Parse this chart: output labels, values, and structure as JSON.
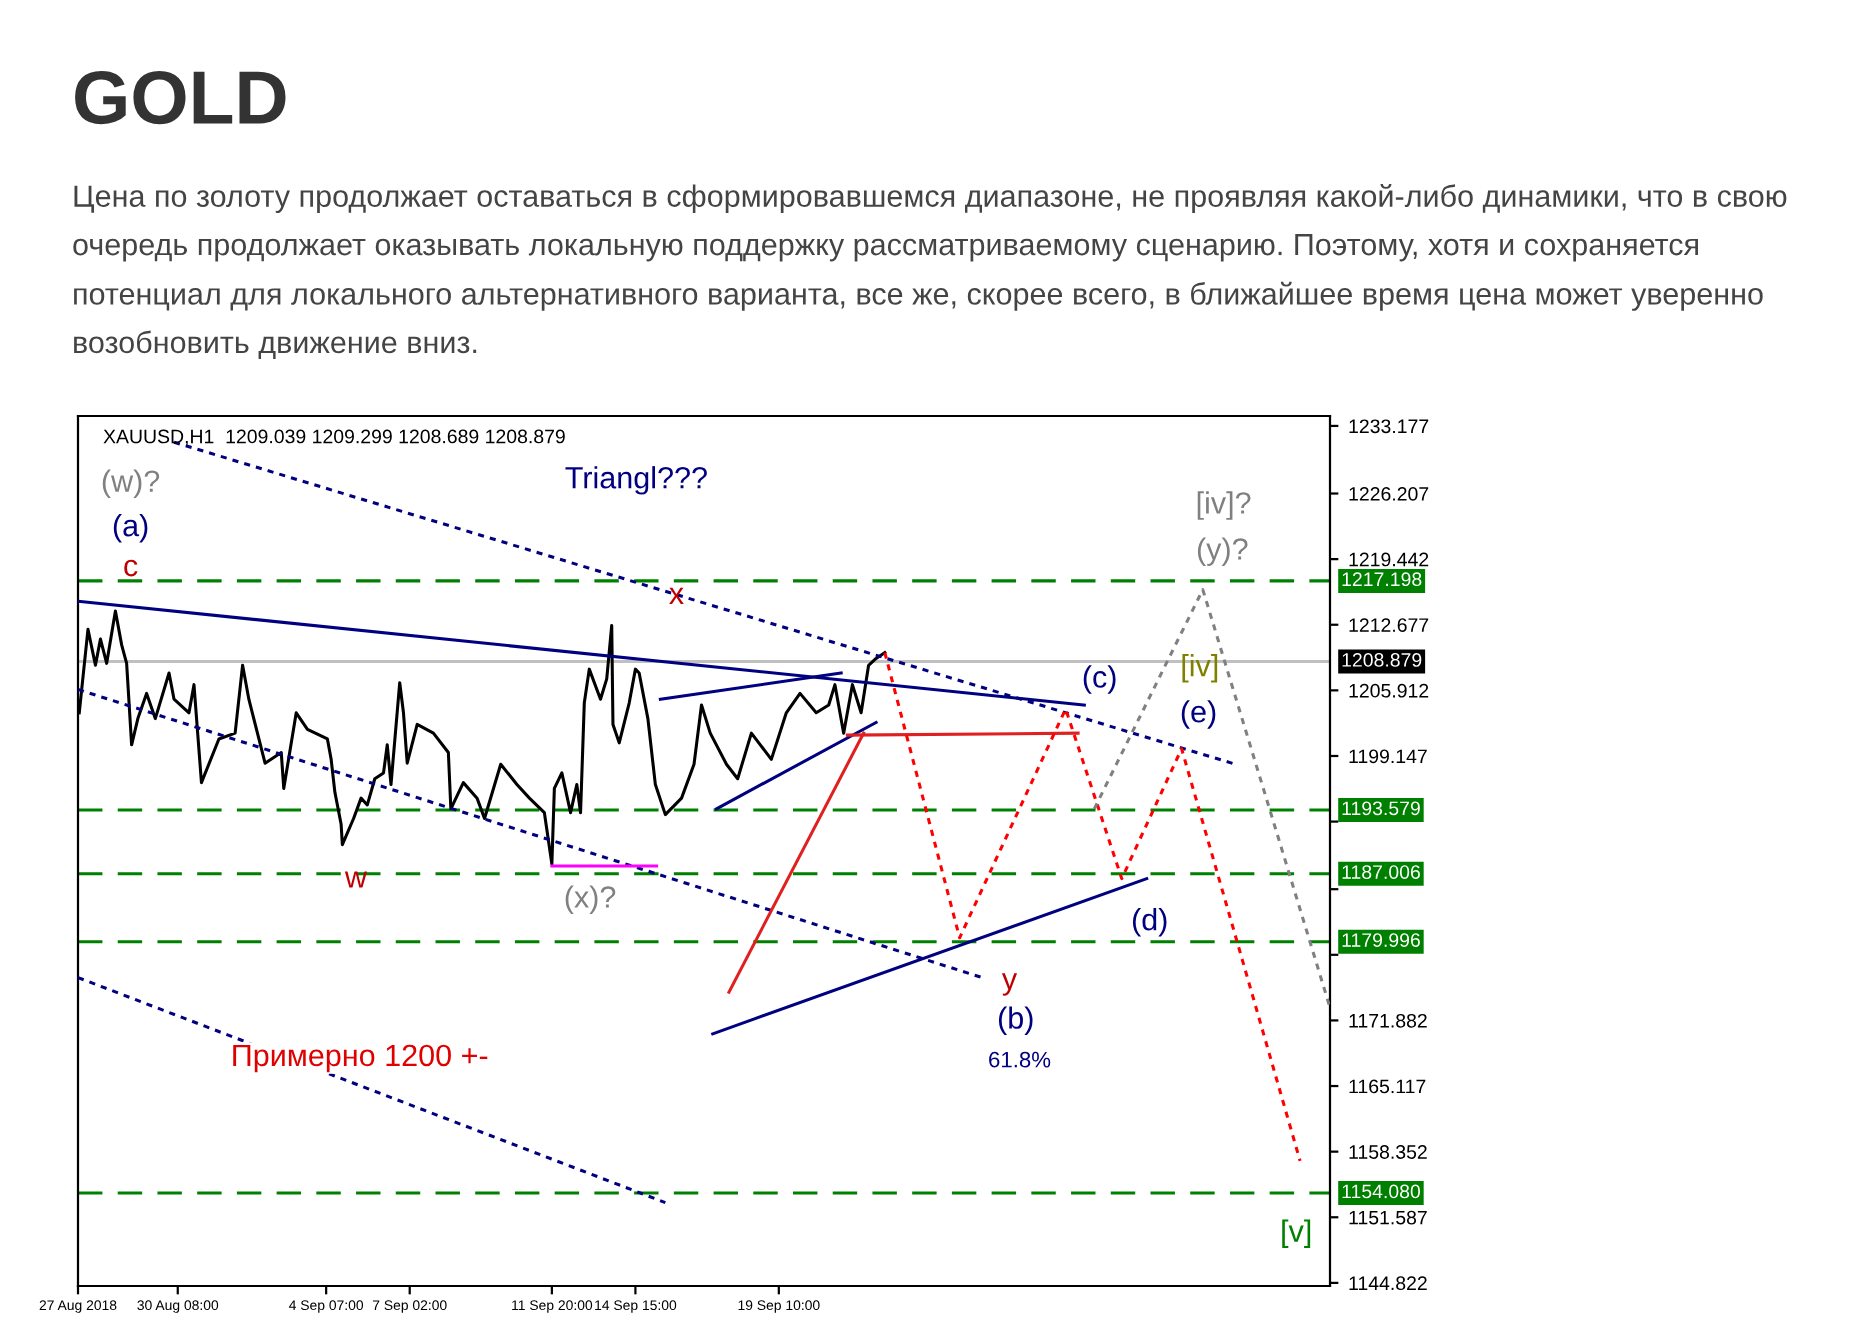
{
  "chart_data": {
    "type": "line",
    "title": "GOLD",
    "subtitle": "Цена по золоту продолжает оставаться в сформировавшемся диапазоне, не проявляя какой-либо динамики, что в свою очередь продолжает оказывать локальную поддержку рассматриваемому сценарию. Поэтому, хотя и сохраняется потенциал для локального альтернативного варианта, все же, скорее всего, в ближайшее время цена может уверенно возобновить движение вниз.",
    "series": [
      {
        "color": "#000000",
        "line_style": "solid",
        "x": [
          "2018-08-27T01:00",
          "2018-08-27T08:00",
          "2018-08-27T14:00",
          "2018-08-27T18:00",
          "2018-08-27T23:00",
          "2018-08-28T06:00",
          "2018-08-28T11:00",
          "2018-08-28T15:00",
          "2018-08-28T19:00",
          "2018-08-29T00:00",
          "2018-08-29T07:00",
          "2018-08-29T14:00",
          "2018-08-30T01:00",
          "2018-08-30T05:00",
          "2018-08-30T17:00",
          "2018-08-30T21:00",
          "2018-08-31T03:00",
          "2018-08-31T17:00",
          "2018-09-01T06:00",
          "2018-09-01T12:00",
          "2018-09-01T17:00",
          "2018-09-02T06:00",
          "2018-09-02T19:00",
          "2018-09-02T21:00",
          "2018-09-03T07:00",
          "2018-09-03T16:00",
          "2018-09-04T08:00",
          "2018-09-04T11:00",
          "2018-09-04T14:00",
          "2018-09-04T19:00",
          "2018-09-04T20:00",
          "2018-09-05T05:00",
          "2018-09-05T11:00",
          "2018-09-05T16:00",
          "2018-09-05T22:00",
          "2018-09-06T05:00",
          "2018-09-06T08:00",
          "2018-09-06T11:00",
          "2018-09-06T18:00",
          "2018-09-06T21:00",
          "2018-09-07T00:00",
          "2018-09-07T08:00",
          "2018-09-07T21:00",
          "2018-09-08T09:00",
          "2018-09-08T11:00",
          "2018-09-08T21:00",
          "2018-09-09T08:00",
          "2018-09-09T14:00",
          "2018-09-10T03:00",
          "2018-09-10T16:00",
          "2018-09-11T02:00",
          "2018-09-11T14:00",
          "2018-09-11T20:00",
          "2018-09-11T22:00",
          "2018-09-12T04:00",
          "2018-09-12T11:00",
          "2018-09-12T16:00",
          "2018-09-12T19:00",
          "2018-09-12T22:00",
          "2018-09-13T02:00",
          "2018-09-13T11:00",
          "2018-09-13T16:00",
          "2018-09-13T20:00",
          "2018-09-13T21:00",
          "2018-09-14T02:00",
          "2018-09-14T10:00",
          "2018-09-14T15:00",
          "2018-09-14T18:00",
          "2018-09-15T01:00",
          "2018-09-15T07:00",
          "2018-09-15T15:00",
          "2018-09-16T04:00",
          "2018-09-16T14:00",
          "2018-09-16T20:00",
          "2018-09-17T03:00",
          "2018-09-17T16:00",
          "2018-09-18T01:00",
          "2018-09-18T12:00",
          "2018-09-19T04:00",
          "2018-09-19T16:00",
          "2018-09-20T03:00",
          "2018-09-20T16:00",
          "2018-09-21T02:00",
          "2018-09-21T07:00",
          "2018-09-21T14:00",
          "2018-09-21T21:00",
          "2018-09-22T04:00",
          "2018-09-22T10:00",
          "2018-09-22T16:00",
          "2018-09-22T23:00"
        ],
        "values": [
          1203.6,
          1212.2,
          1208.5,
          1211.2,
          1208.7,
          1214.1,
          1210.6,
          1208.7,
          1200.3,
          1203.0,
          1205.6,
          1203.0,
          1207.7,
          1205.0,
          1203.6,
          1206.5,
          1196.4,
          1200.9,
          1201.5,
          1208.5,
          1205.0,
          1198.4,
          1199.5,
          1195.8,
          1203.6,
          1201.9,
          1200.9,
          1198.8,
          1195.4,
          1192.1,
          1190.0,
          1192.7,
          1194.8,
          1194.1,
          1196.8,
          1197.4,
          1200.3,
          1196.2,
          1206.7,
          1203.6,
          1198.4,
          1202.4,
          1201.5,
          1199.5,
          1193.7,
          1196.4,
          1194.8,
          1192.7,
          1198.3,
          1196.2,
          1194.8,
          1193.3,
          1188.0,
          1195.8,
          1197.4,
          1193.3,
          1196.2,
          1193.3,
          1204.6,
          1208.1,
          1205.0,
          1207.1,
          1212.6,
          1202.4,
          1200.5,
          1204.6,
          1208.1,
          1207.7,
          1203.0,
          1196.2,
          1193.1,
          1194.8,
          1198.3,
          1204.4,
          1201.5,
          1198.3,
          1196.8,
          1201.5,
          1198.8,
          1203.6,
          1205.6,
          1203.6,
          1204.4,
          1206.5,
          1201.5,
          1206.5,
          1203.6,
          1208.5,
          1209.2,
          1209.8
        ]
      },
      {
        "color": "#000080",
        "line_style": "solid",
        "x": [
          "2018-08-27T00:00",
          "2018-09-29T15:00"
        ],
        "values": [
          1215.1,
          1204.4
        ]
      },
      {
        "color": "#000080",
        "line_style": "solid",
        "x": [
          "2018-09-15T11:00",
          "2018-09-21T12:00"
        ],
        "values": [
          1205.0,
          1207.7
        ]
      },
      {
        "color": "#000080",
        "line_style": "solid",
        "x": [
          "2018-09-17T08:00",
          "2018-09-22T16:00"
        ],
        "values": [
          1193.7,
          1202.6
        ]
      },
      {
        "color": "#000080",
        "line_style": "solid",
        "x": [
          "2018-09-17T05:00",
          "2018-10-01T17:00"
        ],
        "values": [
          1170.5,
          1186.5
        ]
      },
      {
        "color": "#000080",
        "line_style": "dotted",
        "x": [
          "2018-08-30T05:00",
          "2018-10-04T16:00"
        ],
        "values": [
          1231.5,
          1198.3
        ]
      },
      {
        "color": "#000080",
        "line_style": "dotted",
        "x": [
          "2018-08-27T00:00",
          "2018-09-26T05:00"
        ],
        "values": [
          1206.0,
          1176.3
        ]
      },
      {
        "color": "#000080",
        "line_style": "dotted",
        "x": [
          "2018-08-27T00:00",
          "2018-09-15T15:00"
        ],
        "values": [
          1176.3,
          1153.1
        ]
      },
      {
        "color": "#ff00ff",
        "line_style": "solid",
        "x": [
          "2018-09-11T20:00",
          "2018-09-15T08:00"
        ],
        "values": [
          1187.8,
          1187.8
        ]
      },
      {
        "color": "#e02020",
        "line_style": "solid",
        "x": [
          "2018-09-17T18:00",
          "2018-09-22T06:00"
        ],
        "values": [
          1174.8,
          1201.5
        ]
      },
      {
        "color": "#e02020",
        "line_style": "solid",
        "x": [
          "2018-09-21T17:00",
          "2018-09-29T10:00"
        ],
        "values": [
          1201.3,
          1201.5
        ]
      },
      {
        "color": "#ff0000",
        "line_style": "dotted",
        "x": [
          "2018-09-22T23:00",
          "2018-09-25T11:00",
          "2018-09-29T00:00",
          "2018-09-30T21:00",
          "2018-10-02T21:00",
          "2018-10-06T20:00"
        ],
        "values": [
          1209.8,
          1180.4,
          1204.0,
          1186.5,
          1199.9,
          1157.4
        ]
      },
      {
        "color": "#808080",
        "line_style": "dotted",
        "x": [
          "2018-09-29T23:00",
          "2018-10-03T14:00",
          "2018-10-07T20:00"
        ],
        "values": [
          1193.7,
          1216.3,
          1173.2
        ]
      }
    ],
    "xlim": [
      "2018-08-27T00:00",
      "2018-10-07T20:00"
    ],
    "xticks": [
      {
        "value": "2018-08-27T00:00",
        "label": "27 Aug 2018"
      },
      {
        "value": "2018-08-30T08:00",
        "label": "30 Aug 08:00"
      },
      {
        "value": "2018-09-04T07:00",
        "label": "4 Sep 07:00"
      },
      {
        "value": "2018-09-07T02:00",
        "label": "7 Sep 02:00"
      },
      {
        "value": "2018-09-11T20:00",
        "label": "11 Sep 20:00"
      },
      {
        "value": "2018-09-14T15:00",
        "label": "14 Sep 15:00"
      },
      {
        "value": "2018-09-19T10:00",
        "label": "19 Sep 10:00"
      }
    ],
    "ylim": [
      1144.5,
      1234.2
    ],
    "yticks": [
      1233.177,
      1226.207,
      1219.442,
      1212.677,
      1205.912,
      1199.147,
      {
        "value": 1192.382,
        "label": null
      },
      {
        "value": 1185.412,
        "label": null
      },
      {
        "value": 1178.647,
        "label": null
      },
      1171.882,
      1165.117,
      1158.352,
      1151.587,
      1144.822
    ],
    "ref_lines": [
      {
        "axis": "y",
        "value": 1217.198,
        "label": "1217.198",
        "color": "#008000",
        "line_style": "dashed"
      },
      {
        "axis": "y",
        "value": 1208.879,
        "label": "1208.879",
        "color": "#c0c0c0",
        "line_style": "solid"
      },
      {
        "axis": "y",
        "value": 1193.579,
        "label": "1193.579",
        "color": "#008000",
        "line_style": "dashed"
      },
      {
        "axis": "y",
        "value": 1187.006,
        "label": "1187.006",
        "color": "#008000",
        "line_style": "dashed"
      },
      {
        "axis": "y",
        "value": 1179.996,
        "label": "1179.996",
        "color": "#008000",
        "line_style": "dashed"
      },
      {
        "axis": "y",
        "value": 1154.08,
        "label": "1154.080",
        "color": "#008000",
        "line_style": "dashed"
      }
    ],
    "annotations": [
      "XAUUSD,H1  1209.039 1209.299 1208.689 1208.879",
      "(w)?",
      "(a)",
      "c",
      "Triangl???",
      "x",
      "w",
      "(x)?",
      "(c)",
      "[iv]",
      "(e)",
      "[iv]?",
      "(y)?",
      "(d)",
      "y",
      "(b)",
      "61.8%",
      "Примерно 1200 +-",
      "[v]"
    ],
    "grid": false,
    "legend": false
  }
}
